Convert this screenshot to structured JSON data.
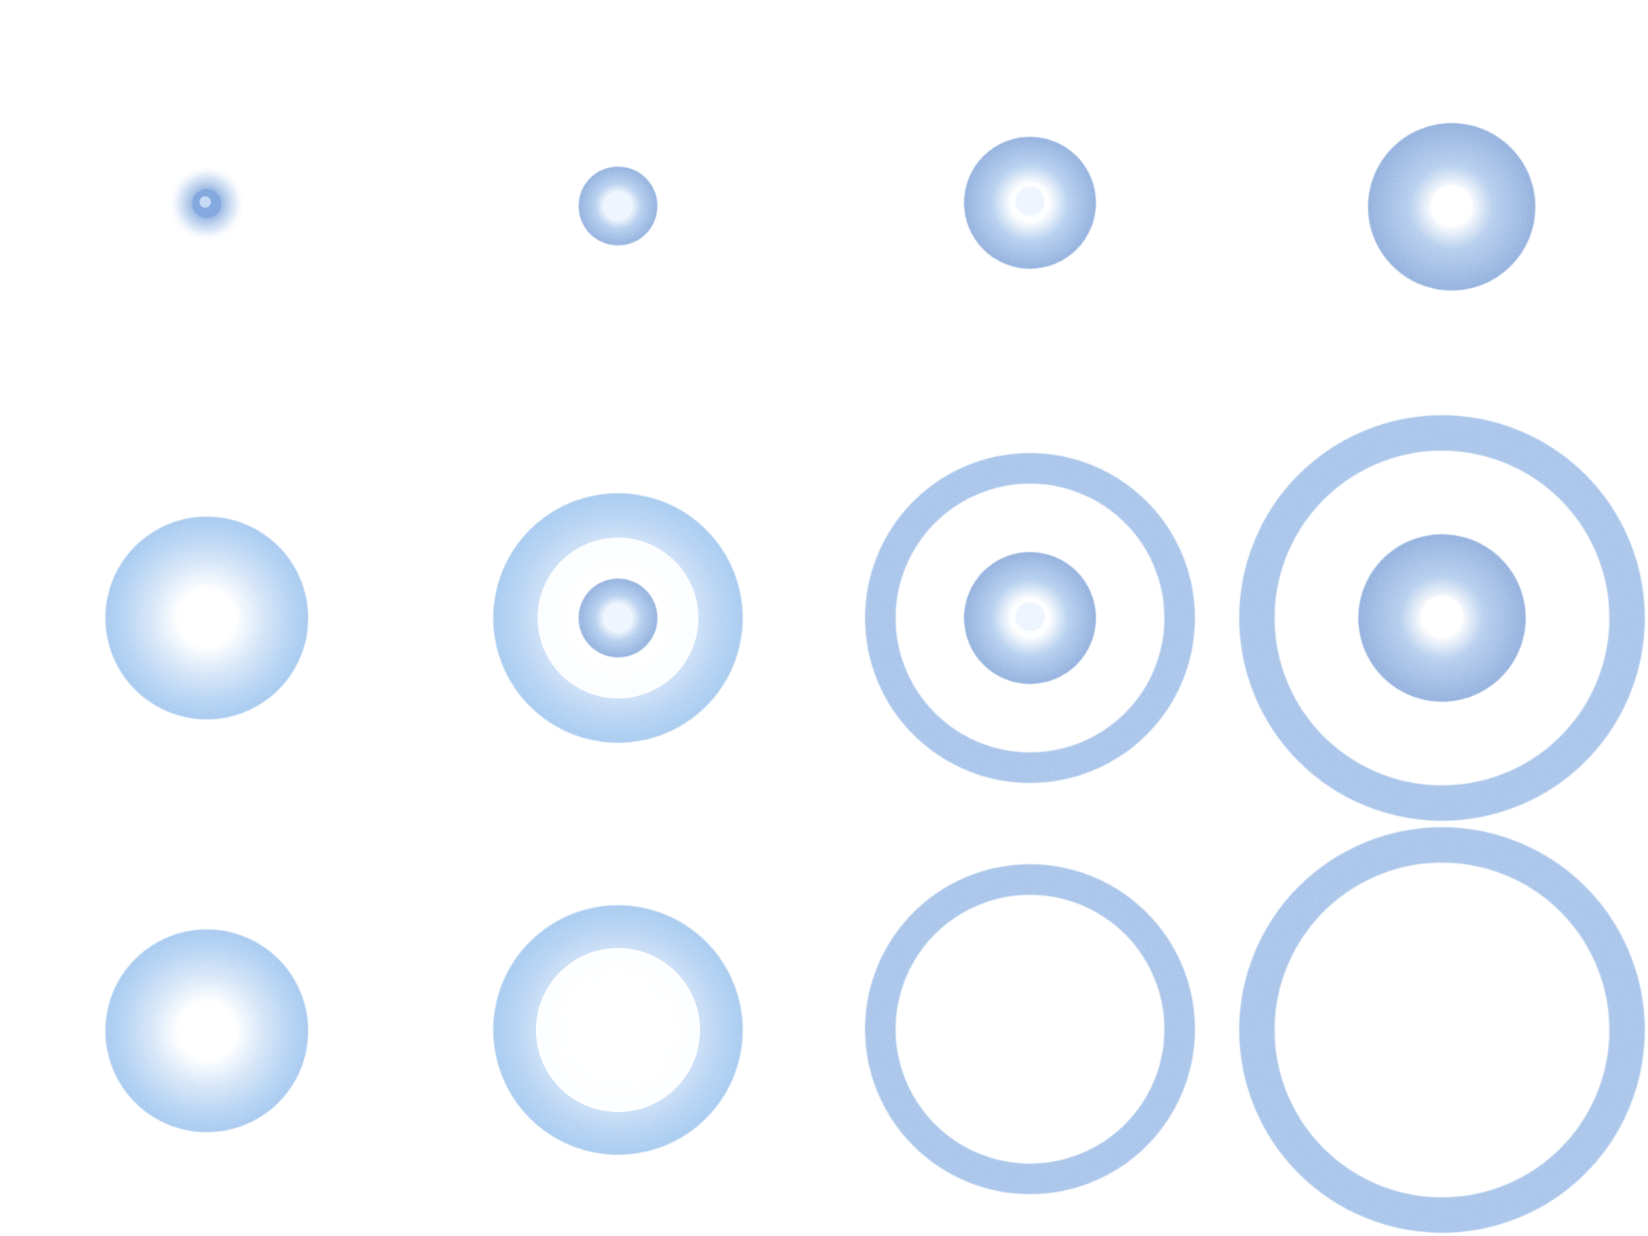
{
  "colors": {
    "background": "#ffffff",
    "blue_dark": "#6f97d3",
    "blue_mid": "#8db2e3",
    "blue_light": "#a9cdf0",
    "center_glow": "#eef5ff"
  },
  "grid": {
    "rows": 3,
    "columns": 4
  },
  "sprites": [
    {
      "row": 1,
      "col": 1,
      "kind": "small-burst-1"
    },
    {
      "row": 1,
      "col": 2,
      "kind": "small-burst-2"
    },
    {
      "row": 1,
      "col": 3,
      "kind": "small-burst-3"
    },
    {
      "row": 1,
      "col": 4,
      "kind": "small-burst-4"
    },
    {
      "row": 2,
      "col": 1,
      "kind": "burst-with-inner-glow"
    },
    {
      "row": 2,
      "col": 2,
      "kind": "ring-with-small-core"
    },
    {
      "row": 2,
      "col": 3,
      "kind": "ring-with-medium-core"
    },
    {
      "row": 2,
      "col": 4,
      "kind": "ring-with-large-core"
    },
    {
      "row": 3,
      "col": 1,
      "kind": "burst-with-inner-glow"
    },
    {
      "row": 3,
      "col": 2,
      "kind": "soft-ring"
    },
    {
      "row": 3,
      "col": 3,
      "kind": "thin-ring"
    },
    {
      "row": 3,
      "col": 4,
      "kind": "large-ring"
    }
  ]
}
